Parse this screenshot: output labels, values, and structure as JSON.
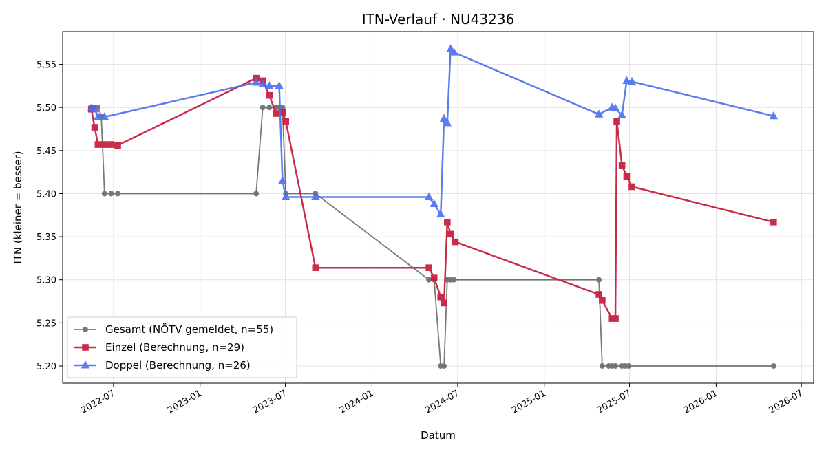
{
  "chart_data": {
    "type": "line",
    "title": "ITN-Verlauf · NU43236",
    "xlabel": "Datum",
    "ylabel": "ITN  (kleiner = besser)",
    "x_axis_type": "date",
    "xlim": [
      "2022-03-15",
      "2026-07-27"
    ],
    "ylim": [
      5.18,
      5.588
    ],
    "grid": true,
    "legend_position": "lower left",
    "x_ticks": [
      "2022-07-01",
      "2023-01-01",
      "2023-07-01",
      "2024-01-01",
      "2024-07-01",
      "2025-01-01",
      "2025-07-01",
      "2026-01-01",
      "2026-07-01"
    ],
    "x_tick_labels": [
      "2022-07",
      "2023-01",
      "2023-07",
      "2024-01",
      "2024-07",
      "2025-01",
      "2025-07",
      "2026-01",
      "2026-07"
    ],
    "y_ticks": [
      5.2,
      5.25,
      5.3,
      5.35,
      5.4,
      5.45,
      5.5,
      5.55
    ],
    "y_tick_labels": [
      "5.20",
      "5.25",
      "5.30",
      "5.35",
      "5.40",
      "5.45",
      "5.50",
      "5.55"
    ],
    "series": [
      {
        "name": "Gesamt (NÖTV gemeldet, n=55)",
        "color": "#404040",
        "marker": "circle",
        "points": [
          {
            "x": "2022-05-15",
            "y": 5.5
          },
          {
            "x": "2022-05-22",
            "y": 5.5
          },
          {
            "x": "2022-05-29",
            "y": 5.5
          },
          {
            "x": "2022-06-05",
            "y": 5.49
          },
          {
            "x": "2022-06-12",
            "y": 5.4
          },
          {
            "x": "2022-06-26",
            "y": 5.4
          },
          {
            "x": "2022-07-10",
            "y": 5.4
          },
          {
            "x": "2023-04-30",
            "y": 5.4
          },
          {
            "x": "2023-05-14",
            "y": 5.5
          },
          {
            "x": "2023-05-28",
            "y": 5.5
          },
          {
            "x": "2023-06-11",
            "y": 5.5
          },
          {
            "x": "2023-06-18",
            "y": 5.5
          },
          {
            "x": "2023-06-25",
            "y": 5.5
          },
          {
            "x": "2023-07-02",
            "y": 5.4
          },
          {
            "x": "2023-09-03",
            "y": 5.4
          },
          {
            "x": "2024-05-01",
            "y": 5.3
          },
          {
            "x": "2024-05-12",
            "y": 5.3
          },
          {
            "x": "2024-05-26",
            "y": 5.2
          },
          {
            "x": "2024-06-02",
            "y": 5.2
          },
          {
            "x": "2024-06-09",
            "y": 5.3
          },
          {
            "x": "2024-06-16",
            "y": 5.3
          },
          {
            "x": "2024-06-23",
            "y": 5.3
          },
          {
            "x": "2025-04-27",
            "y": 5.3
          },
          {
            "x": "2025-05-04",
            "y": 5.2
          },
          {
            "x": "2025-05-18",
            "y": 5.2
          },
          {
            "x": "2025-05-25",
            "y": 5.2
          },
          {
            "x": "2025-06-01",
            "y": 5.2
          },
          {
            "x": "2025-06-15",
            "y": 5.2
          },
          {
            "x": "2025-06-22",
            "y": 5.2
          },
          {
            "x": "2025-06-29",
            "y": 5.2
          },
          {
            "x": "2026-05-03",
            "y": 5.2
          }
        ]
      },
      {
        "name": "Einzel (Berechnung, n=29)",
        "color": "#c8203f",
        "marker": "square",
        "points": [
          {
            "x": "2022-05-15",
            "y": 5.498
          },
          {
            "x": "2022-05-22",
            "y": 5.477
          },
          {
            "x": "2022-05-29",
            "y": 5.457
          },
          {
            "x": "2022-06-12",
            "y": 5.457
          },
          {
            "x": "2022-06-26",
            "y": 5.457
          },
          {
            "x": "2022-07-10",
            "y": 5.456
          },
          {
            "x": "2023-04-30",
            "y": 5.534
          },
          {
            "x": "2023-05-14",
            "y": 5.531
          },
          {
            "x": "2023-05-28",
            "y": 5.514
          },
          {
            "x": "2023-06-11",
            "y": 5.493
          },
          {
            "x": "2023-06-25",
            "y": 5.494
          },
          {
            "x": "2023-07-02",
            "y": 5.484
          },
          {
            "x": "2023-09-03",
            "y": 5.314
          },
          {
            "x": "2024-05-01",
            "y": 5.314
          },
          {
            "x": "2024-05-12",
            "y": 5.302
          },
          {
            "x": "2024-05-26",
            "y": 5.28
          },
          {
            "x": "2024-06-02",
            "y": 5.273
          },
          {
            "x": "2024-06-09",
            "y": 5.367
          },
          {
            "x": "2024-06-16",
            "y": 5.353
          },
          {
            "x": "2024-06-26",
            "y": 5.344
          },
          {
            "x": "2025-04-27",
            "y": 5.283
          },
          {
            "x": "2025-05-04",
            "y": 5.276
          },
          {
            "x": "2025-05-25",
            "y": 5.255
          },
          {
            "x": "2025-06-01",
            "y": 5.255
          },
          {
            "x": "2025-06-04",
            "y": 5.484
          },
          {
            "x": "2025-06-15",
            "y": 5.433
          },
          {
            "x": "2025-06-25",
            "y": 5.42
          },
          {
            "x": "2025-07-06",
            "y": 5.408
          },
          {
            "x": "2026-05-03",
            "y": 5.367
          }
        ]
      },
      {
        "name": "Doppel (Berechnung, n=26)",
        "color": "#4a6ef0",
        "marker": "triangle",
        "points": [
          {
            "x": "2022-05-15",
            "y": 5.499
          },
          {
            "x": "2022-05-22",
            "y": 5.498
          },
          {
            "x": "2022-05-29",
            "y": 5.489
          },
          {
            "x": "2022-06-12",
            "y": 5.489
          },
          {
            "x": "2023-04-30",
            "y": 5.529
          },
          {
            "x": "2023-05-14",
            "y": 5.527
          },
          {
            "x": "2023-05-28",
            "y": 5.525
          },
          {
            "x": "2023-06-18",
            "y": 5.525
          },
          {
            "x": "2023-06-25",
            "y": 5.415
          },
          {
            "x": "2023-07-02",
            "y": 5.396
          },
          {
            "x": "2023-09-03",
            "y": 5.396
          },
          {
            "x": "2024-05-01",
            "y": 5.396
          },
          {
            "x": "2024-05-12",
            "y": 5.388
          },
          {
            "x": "2024-05-26",
            "y": 5.376
          },
          {
            "x": "2024-06-02",
            "y": 5.487
          },
          {
            "x": "2024-06-09",
            "y": 5.482
          },
          {
            "x": "2024-06-16",
            "y": 5.568
          },
          {
            "x": "2024-06-23",
            "y": 5.564
          },
          {
            "x": "2025-04-27",
            "y": 5.492
          },
          {
            "x": "2025-05-25",
            "y": 5.5
          },
          {
            "x": "2025-06-01",
            "y": 5.499
          },
          {
            "x": "2025-06-15",
            "y": 5.491
          },
          {
            "x": "2025-06-25",
            "y": 5.531
          },
          {
            "x": "2025-07-06",
            "y": 5.53
          },
          {
            "x": "2026-05-03",
            "y": 5.49
          }
        ]
      }
    ]
  }
}
